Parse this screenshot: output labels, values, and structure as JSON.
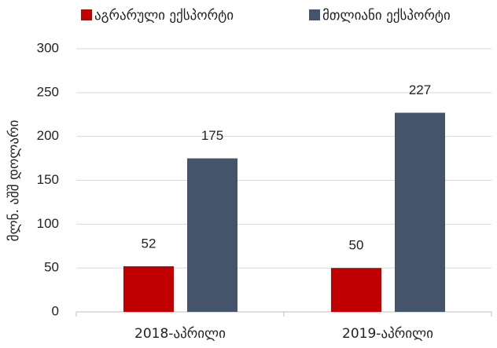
{
  "chart_data": {
    "type": "bar",
    "y_label": "მლნ. აშშ დოლარი",
    "categories": [
      "2018-აპრილი",
      "2019-აპრილი"
    ],
    "series": [
      {
        "name": "აგრარული ექსპორტი",
        "color": "#c00000",
        "values": [
          52,
          50
        ]
      },
      {
        "name": "მთლიანი ექსპორტი",
        "color": "#44546a",
        "values": [
          175,
          227
        ]
      }
    ],
    "ylim": [
      0,
      300
    ],
    "yticks": [
      0,
      50,
      100,
      150,
      200,
      250,
      300
    ],
    "grid": true,
    "legend": "top"
  }
}
